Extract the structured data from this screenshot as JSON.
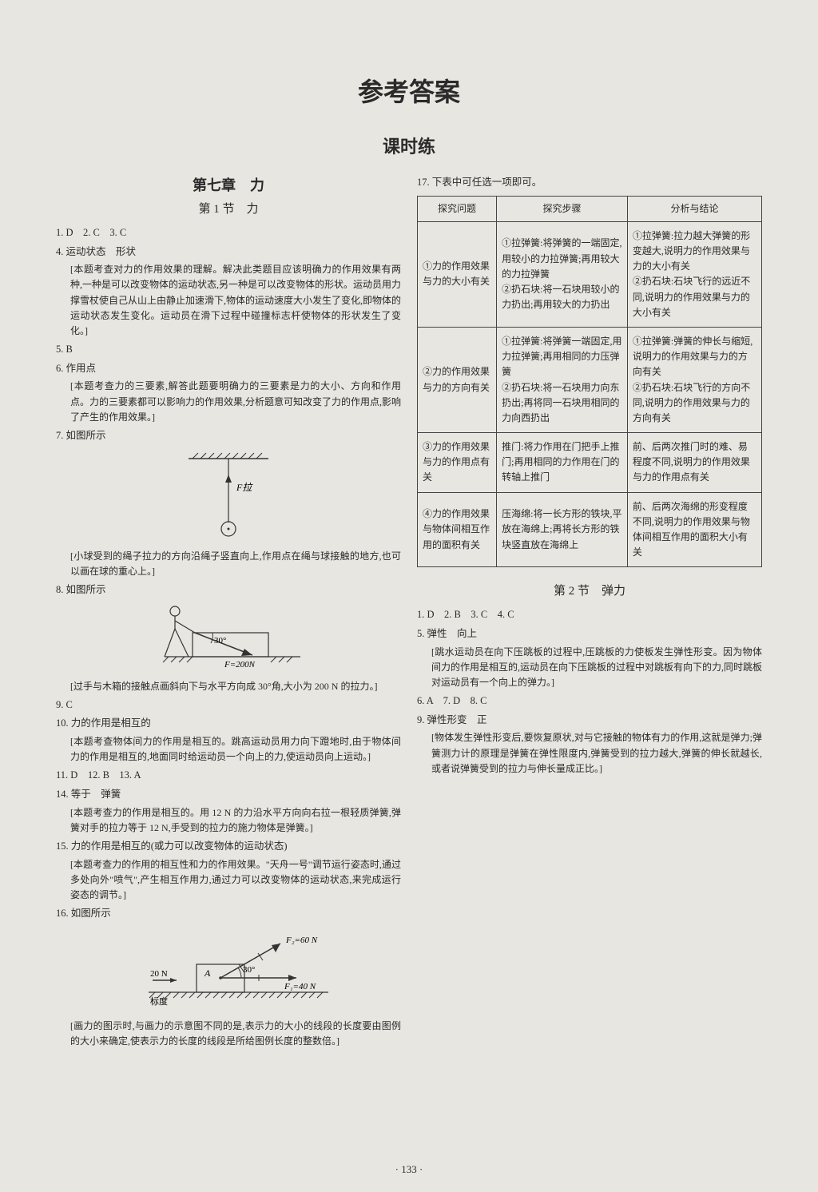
{
  "main_title": "参考答案",
  "sub_title": "课时练",
  "left": {
    "chapter": "第七章　力",
    "section": "第 1 节　力",
    "q1": "1. D　2. C　3. C",
    "q4": "4. 运动状态　形状",
    "q4_exp": "[本题考查对力的作用效果的理解。解决此类题目应该明确力的作用效果有两种,一种是可以改变物体的运动状态,另一种是可以改变物体的形状。运动员用力撑雪杖使自己从山上由静止加速滑下,物体的运动速度大小发生了变化,即物体的运动状态发生变化。运动员在滑下过程中碰撞标志杆使物体的形状发生了变化。]",
    "q5": "5. B",
    "q6": "6. 作用点",
    "q6_exp": "[本题考查力的三要素,解答此题要明确力的三要素是力的大小、方向和作用点。力的三要素都可以影响力的作用效果,分析题意可知改变了力的作用点,影响了产生的作用效果。]",
    "q7": "7. 如图所示",
    "q7_label": "F拉",
    "q7_exp": "[小球受到的绳子拉力的方向沿绳子竖直向上,作用点在绳与球接触的地方,也可以画在球的重心上。]",
    "q8": "8. 如图所示",
    "q8_angle": "30°",
    "q8_force": "F=200N",
    "q8_exp": "[过手与木箱的接触点画斜向下与水平方向成 30°角,大小为 200 N 的拉力。]",
    "q9": "9. C",
    "q10": "10. 力的作用是相互的",
    "q10_exp": "[本题考查物体间力的作用是相互的。跳高运动员用力向下蹬地时,由于物体间力的作用是相互的,地面同时给运动员一个向上的力,使运动员向上运动。]",
    "q11": "11. D　12. B　13. A",
    "q14": "14. 等于　弹簧",
    "q14_exp": "[本题考查力的作用是相互的。用 12 N 的力沿水平方向向右拉一根轻质弹簧,弹簧对手的拉力等于 12 N,手受到的拉力的施力物体是弹簧。]",
    "q15": "15. 力的作用是相互的(或力可以改变物体的运动状态)",
    "q15_exp": "[本题考查力的作用的相互性和力的作用效果。\"天舟一号\"调节运行姿态时,通过多处向外\"喷气\",产生相互作用力,通过力可以改变物体的运动状态,来完成运行姿态的调节。]",
    "q16": "16. 如图所示",
    "q16_scale": "20 N",
    "q16_scale_label": "标度",
    "q16_a": "A",
    "q16_angle": "30°",
    "q16_f1": "F₁=40 N",
    "q16_f2": "F₂=60 N",
    "q16_exp": "[画力的图示时,与画力的示意图不同的是,表示力的大小的线段的长度要由图例的大小来确定,使表示力的长度的线段是所给图例长度的整数倍。]"
  },
  "right": {
    "q17": "17. 下表中可任选一项即可。",
    "table": {
      "headers": [
        "探究问题",
        "探究步骤",
        "分析与结论"
      ],
      "rows": [
        {
          "c1": "①力的作用效果与力的大小有关",
          "c2": "①拉弹簧:将弹簧的一端固定,用较小的力拉弹簧;再用较大的力拉弹簧\n②扔石块:将一石块用较小的力扔出;再用较大的力扔出",
          "c3": "①拉弹簧:拉力越大弹簧的形变越大,说明力的作用效果与力的大小有关\n②扔石块:石块飞行的远近不同,说明力的作用效果与力的大小有关"
        },
        {
          "c1": "②力的作用效果与力的方向有关",
          "c2": "①拉弹簧:将弹簧一端固定,用力拉弹簧;再用相同的力压弹簧\n②扔石块:将一石块用力向东扔出;再将同一石块用相同的力向西扔出",
          "c3": "①拉弹簧:弹簧的伸长与缩短,说明力的作用效果与力的方向有关\n②扔石块:石块飞行的方向不同,说明力的作用效果与力的方向有关"
        },
        {
          "c1": "③力的作用效果与力的作用点有关",
          "c2": "推门:将力作用在门把手上推门;再用相同的力作用在门的转轴上推门",
          "c3": "前、后两次推门时的难、易程度不同,说明力的作用效果与力的作用点有关"
        },
        {
          "c1": "④力的作用效果与物体间相互作用的面积有关",
          "c2": "压海绵:将一长方形的铁块,平放在海绵上;再将长方形的铁块竖直放在海绵上",
          "c3": "前、后两次海绵的形变程度不同,说明力的作用效果与物体间相互作用的面积大小有关"
        }
      ]
    },
    "section2": "第 2 节　弹力",
    "s2_q1": "1. D　2. B　3. C　4. C",
    "s2_q5": "5. 弹性　向上",
    "s2_q5_exp": "[跳水运动员在向下压跳板的过程中,压跳板的力使板发生弹性形变。因为物体间力的作用是相互的,运动员在向下压跳板的过程中对跳板有向下的力,同时跳板对运动员有一个向上的弹力。]",
    "s2_q6": "6. A　7. D　8. C",
    "s2_q9": "9. 弹性形变　正",
    "s2_q9_exp": "[物体发生弹性形变后,要恢复原状,对与它接触的物体有力的作用,这就是弹力;弹簧测力计的原理是弹簧在弹性限度内,弹簧受到的拉力越大,弹簧的伸长就越长,或者说弹簧受到的拉力与伸长量成正比。]"
  },
  "page_num": "· 133 ·"
}
